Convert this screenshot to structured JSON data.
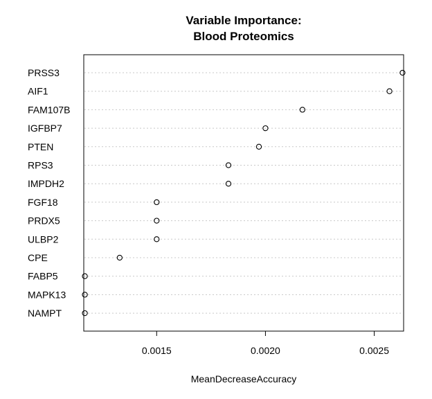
{
  "chart_data": {
    "type": "scatter",
    "title_line1": "Variable Importance:",
    "title_line2": "Blood Proteomics",
    "xlabel": "MeanDecreaseAccuracy",
    "ylabel": "",
    "xlim": [
      0.001165,
      0.002635
    ],
    "xticks": [
      0.0015,
      0.002,
      0.0025
    ],
    "xtick_labels": [
      "0.0015",
      "0.0020",
      "0.0025"
    ],
    "grid": "horizontal dotted",
    "categories": [
      "PRSS3",
      "AIF1",
      "FAM107B",
      "IGFBP7",
      "PTEN",
      "RPS3",
      "IMPDH2",
      "FGF18",
      "PRDX5",
      "ULBP2",
      "CPE",
      "FABP5",
      "MAPK13",
      "NAMPT"
    ],
    "values": [
      0.00263,
      0.00257,
      0.00217,
      0.002,
      0.00197,
      0.00183,
      0.00183,
      0.0015,
      0.0015,
      0.0015,
      0.00133,
      0.00117,
      0.00117,
      0.00117
    ]
  }
}
